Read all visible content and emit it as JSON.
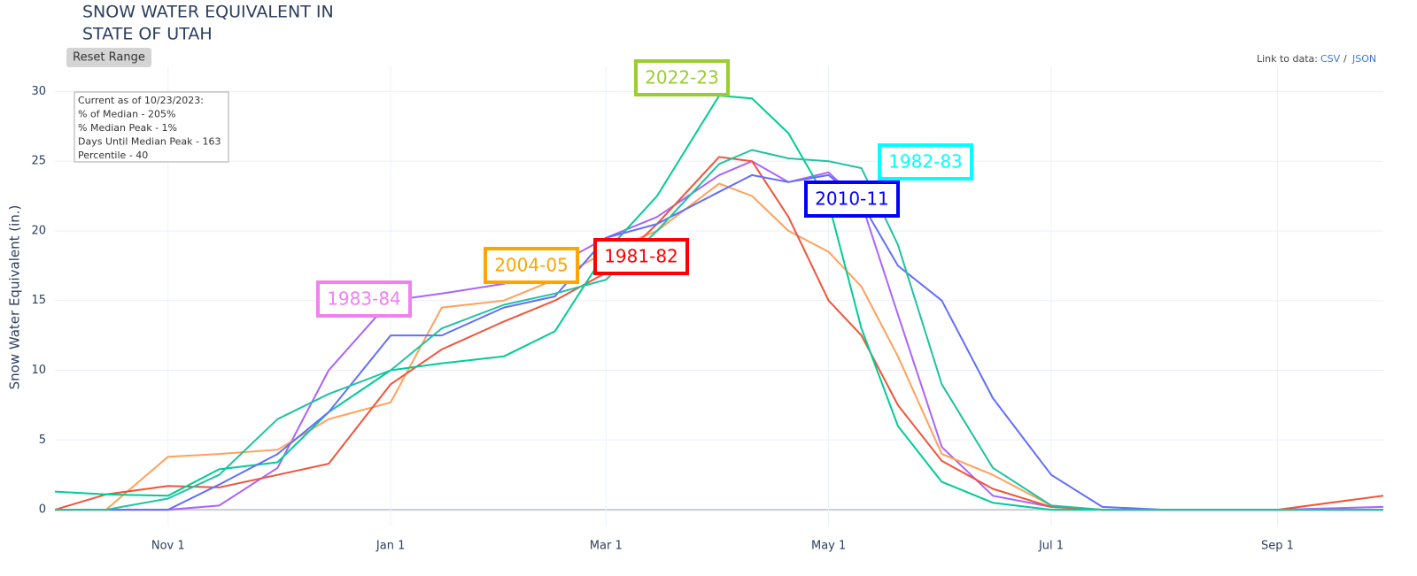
{
  "header": {
    "title_lines": [
      "SNOW WATER EQUIVALENT IN",
      "STATE OF UTAH"
    ],
    "reset_button": "Reset Range",
    "link_label": "Link to data:",
    "link_csv": "CSV",
    "link_sep": "/",
    "link_json": "JSON"
  },
  "info_box": [
    "Current as of 10/23/2023:",
    "% of Median - 205%",
    "% Median Peak - 1%",
    "Days Until Median Peak - 163",
    "Percentile - 40"
  ],
  "chart_data": {
    "type": "line",
    "y_label": "Snow Water Equivalent (in.)",
    "x": [
      "Oct 1",
      "Oct 15",
      "Nov 1",
      "Nov 15",
      "Dec 1",
      "Dec 15",
      "Jan 1",
      "Jan 15",
      "Feb 1",
      "Feb 15",
      "Mar 1",
      "Mar 15",
      "Apr 1",
      "Apr 10",
      "Apr 20",
      "May 1",
      "May 10",
      "May 20",
      "Jun 1",
      "Jun 15",
      "Jul 1",
      "Jul 15",
      "Aug 1",
      "Sep 1",
      "Sep 30"
    ],
    "xlim": [
      "Oct 1",
      "Sep 30"
    ],
    "xticks": [
      "Nov 1",
      "Jan 1",
      "Mar 1",
      "May 1",
      "Jul 1",
      "Sep 1"
    ],
    "ylim": [
      -1.2,
      31.8
    ],
    "yticks": [
      0,
      5,
      10,
      15,
      20,
      25,
      30
    ],
    "grid": true,
    "series": [
      {
        "name": "1983-84",
        "color": "#ab63fa",
        "label_color": "#ee82ee",
        "values": [
          0,
          0,
          0,
          0.3,
          3,
          10,
          15,
          15.5,
          16.2,
          17.5,
          19.5,
          21,
          24,
          25,
          23.5,
          24.2,
          22,
          14,
          4.5,
          1,
          0.2,
          0,
          0,
          0,
          0.2
        ]
      },
      {
        "name": "2004-05",
        "color": "#ffa15a",
        "label_color": "#ffa500",
        "values": [
          0,
          0,
          3.8,
          4,
          4.3,
          6.5,
          7.7,
          14.5,
          15,
          16.5,
          18.5,
          20,
          23.4,
          22.5,
          20,
          18.5,
          16,
          11,
          4,
          2.5,
          0.3,
          0,
          0,
          0,
          0
        ]
      },
      {
        "name": "1981-82",
        "color": "#ef553b",
        "label_color": "#ff0000",
        "values": [
          0,
          1.1,
          1.7,
          1.6,
          2.5,
          3.3,
          9,
          11.5,
          13.5,
          15,
          17,
          20.5,
          25.3,
          25,
          21,
          15,
          12.5,
          7.5,
          3.5,
          1.5,
          0.2,
          0,
          0,
          0,
          1
        ]
      },
      {
        "name": "2022-23",
        "color": "#00cc96",
        "label_color": "#9acd32",
        "values": [
          1.3,
          1.1,
          1,
          2.9,
          3.4,
          7,
          10,
          10.5,
          11,
          12.8,
          18.5,
          22.5,
          29.7,
          29.5,
          27,
          22,
          13,
          6,
          2,
          0.5,
          0,
          0,
          0,
          0,
          0
        ]
      },
      {
        "name": "2010-11",
        "color": "#636efa",
        "label_color": "#0000ff",
        "values": [
          0,
          0,
          0,
          1.8,
          4,
          7,
          12.5,
          12.5,
          14.5,
          15.3,
          19.5,
          20.5,
          22.8,
          24,
          23.5,
          24,
          22,
          17.5,
          15,
          8,
          2.5,
          0.2,
          0,
          0,
          0
        ]
      },
      {
        "name": "1982-83",
        "color": "#1fc3a0",
        "label_color": "#00ffff",
        "values": [
          0,
          0,
          0.8,
          2.5,
          6.5,
          8.3,
          10,
          13,
          14.7,
          15.5,
          16.5,
          20,
          24.8,
          25.8,
          25.2,
          25,
          24.5,
          19,
          9,
          3,
          0.3,
          0,
          0,
          0,
          0
        ]
      }
    ]
  }
}
